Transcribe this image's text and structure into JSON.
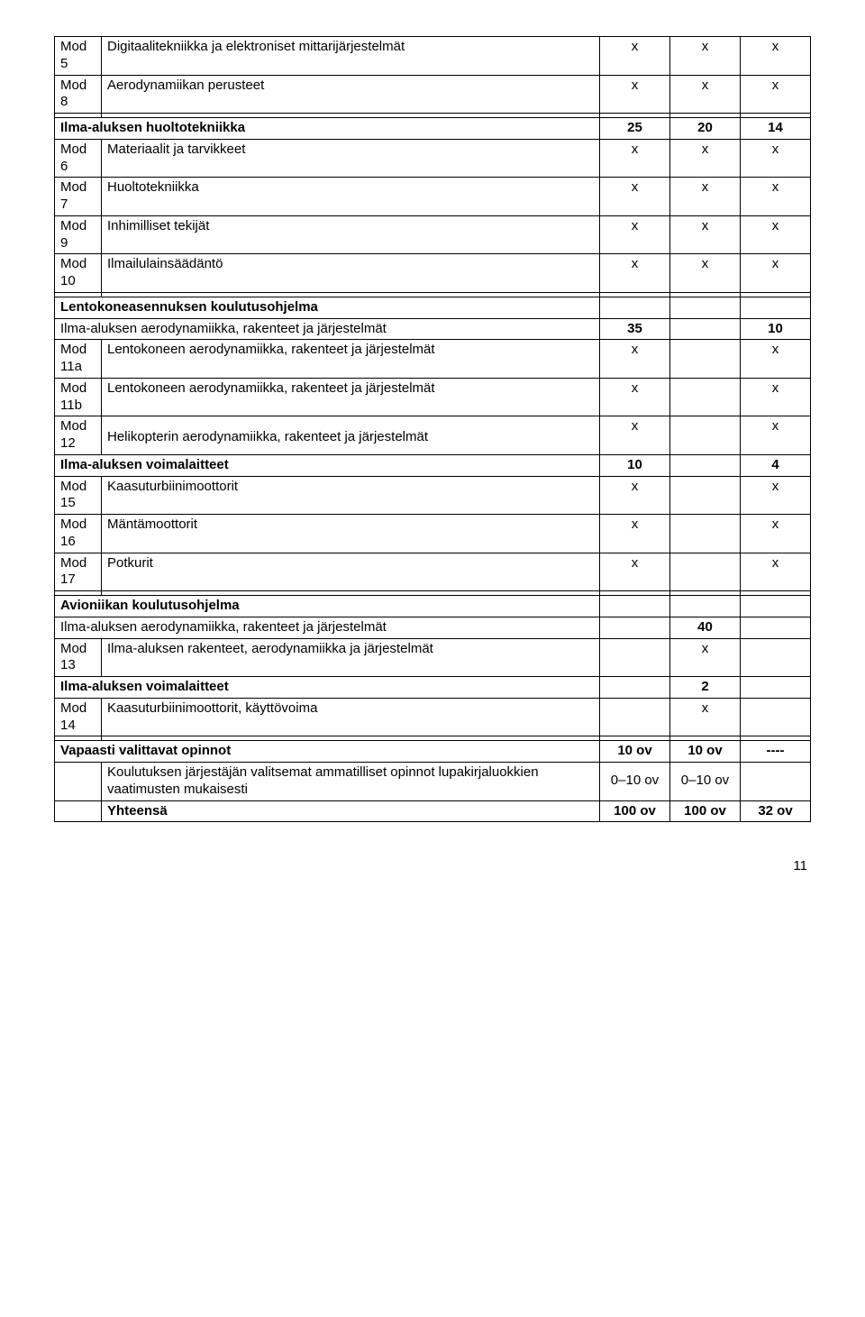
{
  "colors": {
    "text": "#000000",
    "background": "#ffffff",
    "border": "#000000"
  },
  "typography": {
    "font_family": "Arial, Helvetica, sans-serif",
    "font_size_pt": 11,
    "bold_weight": 700
  },
  "page_number": "11",
  "rows": [
    {
      "mod": "Mod 5",
      "desc": "Digitaalitekniikka ja elektroniset mittarijärjestelmät",
      "a": "x",
      "b": "x",
      "c": "x",
      "bold": false
    },
    {
      "mod": "Mod 8",
      "desc": "Aerodynamiikan perusteet",
      "a": "x",
      "b": "x",
      "c": "x",
      "bold": false
    },
    {
      "mod": "",
      "desc": "",
      "a": "",
      "b": "",
      "c": "",
      "bold": false,
      "header": false
    },
    {
      "mod": "",
      "desc": "Ilma-aluksen huoltotekniikka",
      "a": "25",
      "b": "20",
      "c": "14",
      "bold": true,
      "span": true
    },
    {
      "mod": "Mod 6",
      "desc": "Materiaalit ja tarvikkeet",
      "a": "x",
      "b": "x",
      "c": "x",
      "bold": false
    },
    {
      "mod": "Mod 7",
      "desc": "Huoltotekniikka",
      "a": "x",
      "b": "x",
      "c": "x",
      "bold": false
    },
    {
      "mod": "Mod 9",
      "desc": "Inhimilliset tekijät",
      "a": "x",
      "b": "x",
      "c": "x",
      "bold": false
    },
    {
      "mod": "Mod 10",
      "desc": "Ilmailulainsäädäntö",
      "a": "x",
      "b": "x",
      "c": "x",
      "bold": false
    },
    {
      "mod": "",
      "desc": "",
      "a": "",
      "b": "",
      "c": "",
      "bold": false
    },
    {
      "mod": "",
      "desc": "Lentokoneasennuksen koulutusohjelma",
      "a": "",
      "b": "",
      "c": "",
      "bold": true,
      "span": true
    },
    {
      "mod": "",
      "desc": "Ilma-aluksen aerodynamiikka, rakenteet ja järjestelmät",
      "a": "35",
      "b": "",
      "c": "10",
      "bold": false,
      "span": true,
      "valbold": true
    },
    {
      "mod": "Mod 11a",
      "desc": "Lentokoneen aerodynamiikka, rakenteet ja järjestelmät",
      "a": "x",
      "b": "",
      "c": "x",
      "bold": false
    },
    {
      "mod": "Mod 11b",
      "desc": "Lentokoneen aerodynamiikka, rakenteet ja järjestelmät",
      "a": "x",
      "b": "",
      "c": "x",
      "bold": false
    },
    {
      "mod": "Mod 12",
      "desc": "Helikopterin aerodynamiikka, rakenteet ja järjestelmät",
      "a": "x",
      "b": "",
      "c": "x",
      "bold": false,
      "toppad": true
    },
    {
      "mod": "",
      "desc": "Ilma-aluksen voimalaitteet",
      "a": "10",
      "b": "",
      "c": "4",
      "bold": true,
      "span": true
    },
    {
      "mod": "Mod 15",
      "desc": "Kaasuturbiinimoottorit",
      "a": "x",
      "b": "",
      "c": "x",
      "bold": false
    },
    {
      "mod": "Mod 16",
      "desc": "Mäntämoottorit",
      "a": "x",
      "b": "",
      "c": "x",
      "bold": false
    },
    {
      "mod": "Mod 17",
      "desc": "Potkurit",
      "a": "x",
      "b": "",
      "c": "x",
      "bold": false
    },
    {
      "mod": "",
      "desc": "",
      "a": "",
      "b": "",
      "c": "",
      "bold": false
    },
    {
      "mod": "",
      "desc": "Avioniikan koulutusohjelma",
      "a": "",
      "b": "",
      "c": "",
      "bold": true,
      "span": true
    },
    {
      "mod": "",
      "desc": "Ilma-aluksen aerodynamiikka, rakenteet ja järjestelmät",
      "a": "",
      "b": "40",
      "c": "",
      "bold": false,
      "span": true,
      "valbold": true
    },
    {
      "mod": "Mod 13",
      "desc": "Ilma-aluksen rakenteet, aerodynamiikka ja järjestelmät",
      "a": "",
      "b": "x",
      "c": "",
      "bold": false
    },
    {
      "mod": "",
      "desc": "Ilma-aluksen voimalaitteet",
      "a": "",
      "b": "2",
      "c": "",
      "bold": true,
      "span": true
    },
    {
      "mod": "Mod 14",
      "desc": "Kaasuturbiinimoottorit, käyttövoima",
      "a": "",
      "b": "x",
      "c": "",
      "bold": false
    },
    {
      "mod": "",
      "desc": "",
      "a": "",
      "b": "",
      "c": "",
      "bold": false
    },
    {
      "mod": "",
      "desc": "Vapaasti valittavat opinnot",
      "a": "10 ov",
      "b": "10 ov",
      "c": "----",
      "bold": true,
      "span": true
    },
    {
      "mod": "",
      "desc": "Koulutuksen järjestäjän valitsemat ammatilliset opinnot lupakirjaluokkien vaatimusten mukaisesti",
      "a": "0–10 ov",
      "b": "0–10 ov",
      "c": "",
      "bold": false,
      "valign": "middle"
    },
    {
      "mod": "",
      "desc": "Yhteensä",
      "a": "100 ov",
      "b": "100 ov",
      "c": "32 ov",
      "bold": true
    }
  ]
}
